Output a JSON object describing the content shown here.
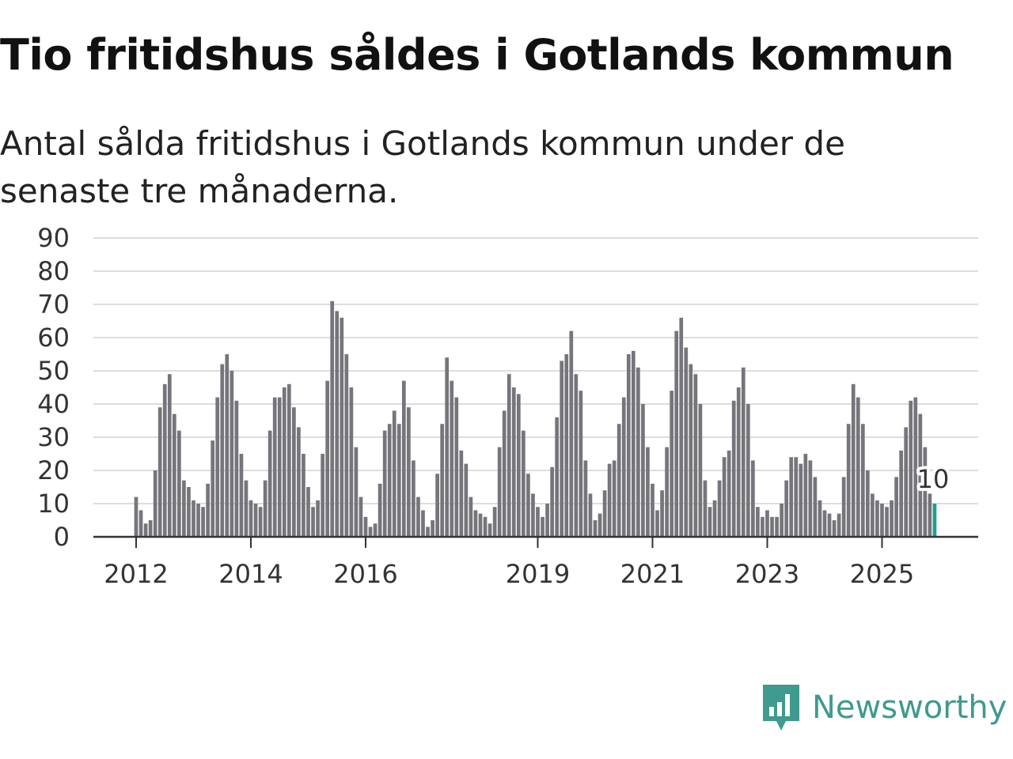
{
  "title": "Tio fritidshus såldes i Gotlands kommun",
  "subtitle": "Antal sålda fritidshus i Gotlands kommun under de senaste tre månaderna.",
  "brand": {
    "name": "Newsworthy",
    "color": "#3f9a8f",
    "logo_icon": "newsworthy-logo-icon"
  },
  "chart_data": {
    "type": "bar",
    "title": "Tio fritidshus såldes i Gotlands kommun",
    "subtitle": "Antal sålda fritidshus i Gotlands kommun under de senaste tre månaderna.",
    "xlabel": "",
    "ylabel": "",
    "ylim": [
      0,
      90
    ],
    "yticks": [
      0,
      10,
      20,
      30,
      40,
      50,
      60,
      70,
      80,
      90
    ],
    "xticks": [
      "2012",
      "2014",
      "2016",
      "2019",
      "2021",
      "2023",
      "2025"
    ],
    "grid": true,
    "legend": "none",
    "bar_color": "#76757b",
    "highlight_color": "#1f9e94",
    "start": "2012-01",
    "frequency": "monthly",
    "values": [
      12,
      8,
      4,
      5,
      20,
      39,
      46,
      49,
      37,
      32,
      17,
      15,
      11,
      10,
      9,
      16,
      29,
      42,
      52,
      55,
      50,
      41,
      25,
      17,
      11,
      10,
      9,
      17,
      32,
      42,
      42,
      45,
      46,
      39,
      33,
      25,
      15,
      9,
      11,
      25,
      47,
      71,
      68,
      66,
      55,
      45,
      27,
      12,
      6,
      3,
      4,
      16,
      32,
      34,
      38,
      34,
      47,
      39,
      23,
      12,
      8,
      3,
      5,
      19,
      34,
      54,
      47,
      42,
      26,
      22,
      12,
      8,
      7,
      6,
      4,
      9,
      27,
      38,
      49,
      45,
      43,
      32,
      19,
      13,
      9,
      6,
      10,
      21,
      36,
      53,
      55,
      62,
      49,
      44,
      23,
      13,
      5,
      7,
      14,
      22,
      23,
      34,
      42,
      55,
      56,
      51,
      40,
      27,
      16,
      8,
      14,
      27,
      44,
      62,
      66,
      57,
      52,
      49,
      40,
      17,
      9,
      11,
      17,
      24,
      26,
      41,
      45,
      51,
      40,
      23,
      9,
      6,
      8,
      6,
      6,
      10,
      17,
      24,
      24,
      22,
      25,
      23,
      18,
      11,
      8,
      7,
      5,
      7,
      18,
      34,
      46,
      42,
      34,
      20,
      13,
      11,
      10,
      9,
      11,
      18,
      26,
      33,
      41,
      42,
      37,
      27,
      13,
      10
    ],
    "last_label": "10"
  }
}
